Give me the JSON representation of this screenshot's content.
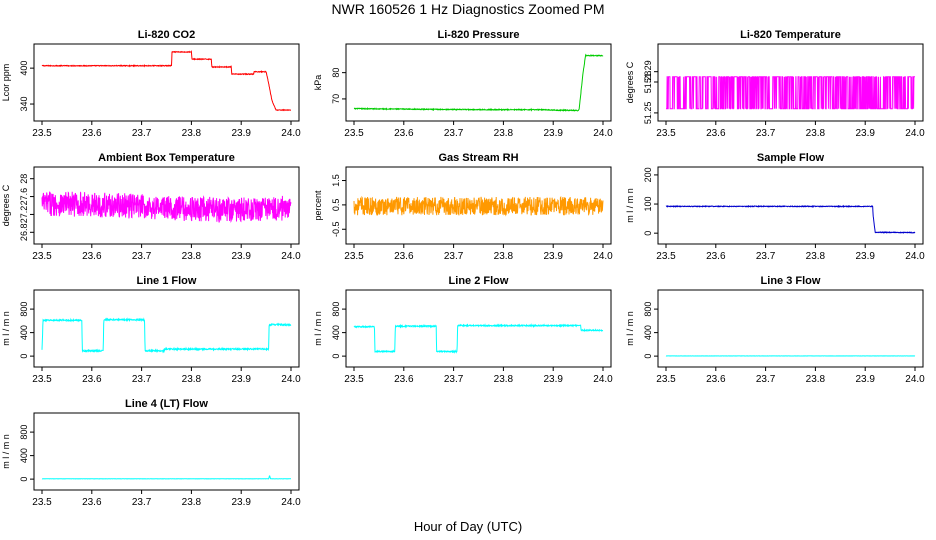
{
  "page": {
    "title": "NWR  160526  1 Hz Diagnostics Zoomed PM",
    "xlabel": "Hour of Day (UTC)"
  },
  "x_ticks": [
    "23.5",
    "23.6",
    "23.7",
    "23.8",
    "23.9",
    "24.0"
  ],
  "chart_data": [
    {
      "type": "line",
      "title": "Li-820 CO2",
      "ylabel": "Lcor ppm",
      "color": "#ff0000",
      "xlim": [
        23.5,
        24.0
      ],
      "ylim": [
        320,
        432
      ],
      "yticks": [
        340,
        400
      ],
      "x": [
        23.5,
        23.76,
        23.761,
        23.8,
        23.801,
        23.84,
        23.841,
        23.88,
        23.881,
        23.925,
        23.926,
        23.95,
        23.955,
        23.962,
        23.97,
        24.0
      ],
      "y": [
        404,
        404,
        427,
        427,
        415,
        415,
        402,
        402,
        390,
        390,
        394,
        394,
        375,
        345,
        330,
        330
      ],
      "noise": 0.6
    },
    {
      "type": "line",
      "title": "Li-820 Pressure",
      "ylabel": "kPa",
      "color": "#00cc00",
      "xlim": [
        23.5,
        24.0
      ],
      "ylim": [
        63.5,
        89
      ],
      "yticks": [
        70,
        80
      ],
      "x": [
        23.5,
        23.62,
        23.68,
        23.8,
        23.88,
        23.91,
        23.95,
        23.952,
        23.96,
        23.965,
        24.0
      ],
      "y": [
        66.3,
        66.1,
        66.0,
        65.9,
        65.9,
        65.7,
        65.6,
        66.0,
        80.0,
        86.5,
        86.5
      ],
      "noise": 0.15
    },
    {
      "type": "line",
      "title": "Li-820 Temperature",
      "ylabel": "degrees C",
      "color": "#ff00ff",
      "xlim": [
        23.5,
        24.0
      ],
      "ylim": [
        51.247,
        51.312
      ],
      "yticks": [
        51.25,
        51.28,
        51.29
      ],
      "x": [
        23.5,
        24.0
      ],
      "y": [
        51.254,
        51.285
      ],
      "noise": 0
    },
    {
      "type": "line",
      "title": "Ambient Box Temperature",
      "ylabel": "degrees C",
      "color": "#ff00ff",
      "xlim": [
        23.5,
        24.0
      ],
      "ylim": [
        26.65,
        28.15
      ],
      "yticks": [
        26.8,
        27.2,
        27.6,
        28.0
      ],
      "x": [
        23.5,
        23.6,
        23.7,
        23.8,
        23.9,
        24.0
      ],
      "y": [
        27.45,
        27.42,
        27.38,
        27.32,
        27.3,
        27.35
      ],
      "noise": 0.28
    },
    {
      "type": "line",
      "title": "Gas Stream RH",
      "ylabel": "percent",
      "color": "#ff9900",
      "xlim": [
        23.5,
        24.0
      ],
      "ylim": [
        -0.9,
        1.85
      ],
      "yticks": [
        -0.5,
        0.5,
        1.5
      ],
      "x": [
        23.5,
        24.0
      ],
      "y": [
        0.45,
        0.45
      ],
      "noise": 0.38
    },
    {
      "type": "line",
      "title": "Sample Flow",
      "ylabel": "m l / m n",
      "color": "#0000cc",
      "xlim": [
        23.5,
        24.0
      ],
      "ylim": [
        -20,
        210
      ],
      "yticks": [
        0,
        100,
        200
      ],
      "x": [
        23.5,
        23.915,
        23.916,
        23.92,
        24.0
      ],
      "y": [
        92,
        92,
        60,
        3,
        2
      ],
      "noise": 1.2
    },
    {
      "type": "line",
      "title": "Line 1 Flow",
      "ylabel": "m l / m n",
      "color": "#00ffff",
      "xlim": [
        23.5,
        24.0
      ],
      "ylim": [
        -100,
        1040
      ],
      "yticks": [
        0,
        400,
        800
      ],
      "x": [
        23.5,
        23.502,
        23.58,
        23.581,
        23.623,
        23.624,
        23.706,
        23.707,
        23.745,
        23.746,
        23.955,
        23.956,
        23.96,
        24.0
      ],
      "y": [
        100,
        610,
        610,
        90,
        90,
        620,
        620,
        90,
        90,
        120,
        120,
        520,
        540,
        530
      ],
      "noise": 12
    },
    {
      "type": "line",
      "title": "Line 2 Flow",
      "ylabel": "m l / m n",
      "color": "#00ffff",
      "xlim": [
        23.5,
        24.0
      ],
      "ylim": [
        -100,
        1040
      ],
      "yticks": [
        0,
        400,
        800
      ],
      "x": [
        23.5,
        23.541,
        23.542,
        23.582,
        23.583,
        23.665,
        23.666,
        23.707,
        23.708,
        23.955,
        23.956,
        24.0
      ],
      "y": [
        500,
        500,
        80,
        80,
        510,
        510,
        80,
        80,
        520,
        520,
        440,
        440
      ],
      "noise": 10
    },
    {
      "type": "line",
      "title": "Line 3 Flow",
      "ylabel": "m l / m n",
      "color": "#00ffff",
      "xlim": [
        23.5,
        24.0
      ],
      "ylim": [
        -100,
        1040
      ],
      "yticks": [
        0,
        400,
        800
      ],
      "x": [
        23.5,
        24.0
      ],
      "y": [
        3,
        3
      ],
      "noise": 1
    },
    {
      "type": "line",
      "title": "Line 4 (LT) Flow",
      "ylabel": "m l / m n",
      "color": "#00ffff",
      "xlim": [
        23.5,
        24.0
      ],
      "ylim": [
        -100,
        1040
      ],
      "yticks": [
        0,
        400,
        800
      ],
      "x": [
        23.5,
        23.955,
        23.957,
        23.959,
        23.962,
        24.0
      ],
      "y": [
        5,
        5,
        60,
        5,
        5,
        5
      ],
      "noise": 1
    }
  ]
}
